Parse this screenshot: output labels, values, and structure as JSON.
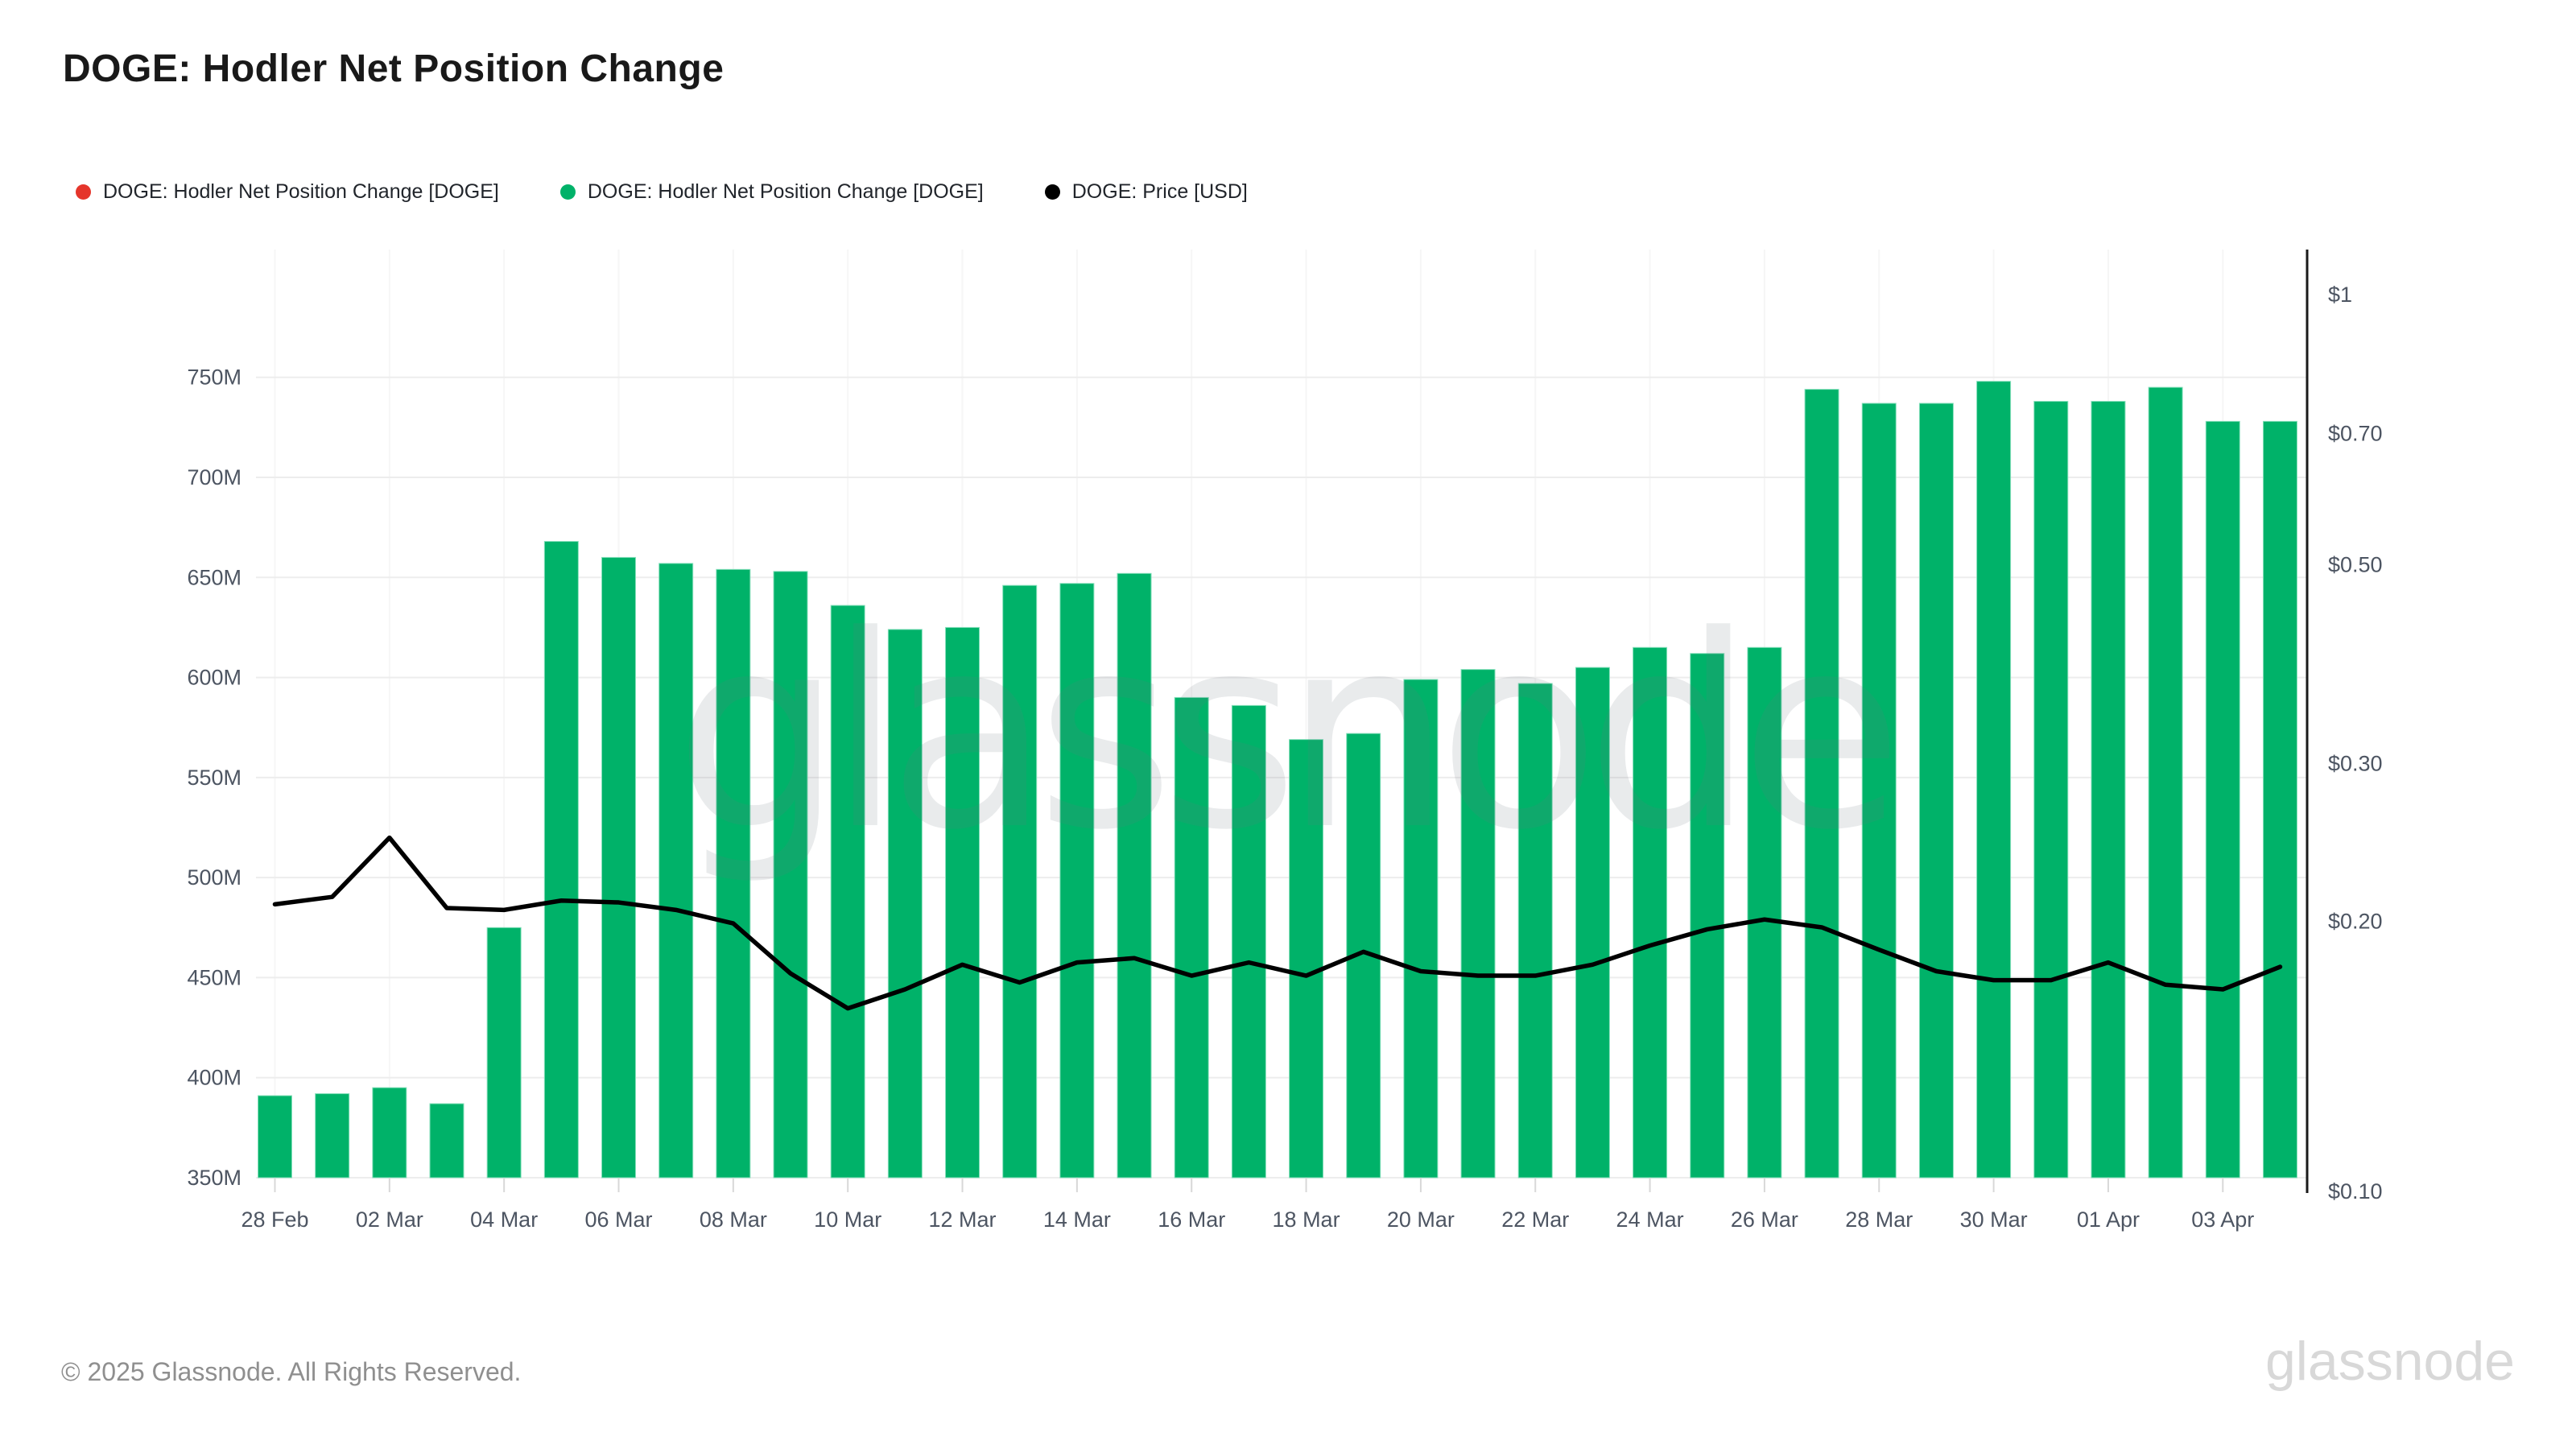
{
  "title": "DOGE: Hodler Net Position Change",
  "watermark": "glassnode",
  "legend": {
    "items": [
      {
        "label": "DOGE: Hodler Net Position Change [DOGE]",
        "color": "#e5352b"
      },
      {
        "label": "DOGE: Hodler Net Position Change [DOGE]",
        "color": "#00b269"
      },
      {
        "label": "DOGE: Price [USD]",
        "color": "#000000"
      }
    ]
  },
  "footer": {
    "copyright": "© 2025 Glassnode. All Rights Reserved.",
    "logo": "glassnode"
  },
  "chart_data": {
    "type": "bar",
    "title": "DOGE: Hodler Net Position Change",
    "categories": [
      "28 Feb",
      "01 Mar",
      "02 Mar",
      "03 Mar",
      "04 Mar",
      "05 Mar",
      "06 Mar",
      "07 Mar",
      "08 Mar",
      "09 Mar",
      "10 Mar",
      "11 Mar",
      "12 Mar",
      "13 Mar",
      "14 Mar",
      "15 Mar",
      "16 Mar",
      "17 Mar",
      "18 Mar",
      "19 Mar",
      "20 Mar",
      "21 Mar",
      "22 Mar",
      "23 Mar",
      "24 Mar",
      "25 Mar",
      "26 Mar",
      "27 Mar",
      "28 Mar",
      "29 Mar",
      "30 Mar",
      "31 Mar",
      "01 Apr",
      "02 Apr",
      "03 Apr",
      "04 Apr"
    ],
    "x_tick_labels": [
      "28 Feb",
      "02 Mar",
      "04 Mar",
      "06 Mar",
      "08 Mar",
      "10 Mar",
      "12 Mar",
      "14 Mar",
      "16 Mar",
      "18 Mar",
      "20 Mar",
      "22 Mar",
      "24 Mar",
      "26 Mar",
      "28 Mar",
      "30 Mar",
      "01 Apr",
      "03 Apr"
    ],
    "series": [
      {
        "name": "DOGE: Hodler Net Position Change [DOGE]",
        "type": "bar",
        "axis": "left",
        "unit": "DOGE (millions)",
        "color": "#00b269",
        "values": [
          391,
          392,
          395,
          387,
          475,
          668,
          660,
          657,
          654,
          653,
          636,
          624,
          625,
          646,
          647,
          652,
          590,
          586,
          569,
          572,
          599,
          604,
          597,
          605,
          615,
          612,
          615,
          744,
          737,
          737,
          748,
          738,
          738,
          745,
          728,
          728
        ]
      },
      {
        "name": "DOGE: Price [USD]",
        "type": "line",
        "axis": "right",
        "unit": "USD",
        "color": "#000000",
        "values": [
          0.209,
          0.213,
          0.248,
          0.207,
          0.206,
          0.211,
          0.21,
          0.206,
          0.199,
          0.175,
          0.16,
          0.168,
          0.179,
          0.171,
          0.18,
          0.182,
          0.174,
          0.18,
          0.174,
          0.185,
          0.176,
          0.174,
          0.174,
          0.179,
          0.188,
          0.196,
          0.201,
          0.197,
          0.186,
          0.176,
          0.172,
          0.172,
          0.18,
          0.17,
          0.168,
          0.178
        ]
      }
    ],
    "left_axis": {
      "unit": "M",
      "ticks": [
        750,
        700,
        650,
        600,
        550,
        500,
        450,
        400,
        350
      ],
      "range": [
        350,
        814
      ]
    },
    "right_axis": {
      "scale": "log",
      "ticks": [
        {
          "label": "$1",
          "value": 1
        },
        {
          "label": "$0.70",
          "value": 0.7
        },
        {
          "label": "$0.50",
          "value": 0.5
        },
        {
          "label": "$0.30",
          "value": 0.3
        },
        {
          "label": "$0.20",
          "value": 0.2
        },
        {
          "label": "$0.10",
          "value": 0.1
        }
      ]
    },
    "grid": true,
    "legend_position": "top"
  }
}
